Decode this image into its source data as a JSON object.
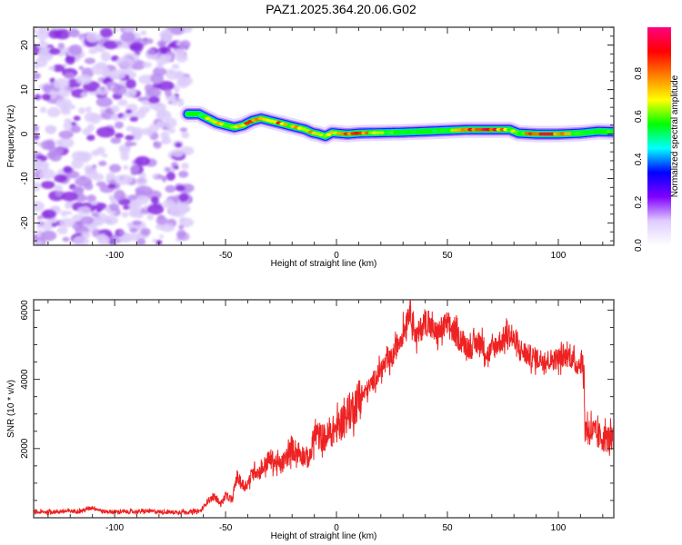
{
  "title": "PAZ1.2025.364.20.06.G02",
  "chart_data": [
    {
      "type": "heatmap",
      "name": "spectrogram",
      "xlabel": "Height of straight line (km)",
      "ylabel": "Frequency (Hz)",
      "xlim": [
        -136.5,
        125
      ],
      "ylim": [
        -25,
        24
      ],
      "xticks": [
        -100,
        -50,
        0,
        50,
        100
      ],
      "yticks": [
        -20,
        -10,
        0,
        10,
        20
      ],
      "colorbar": {
        "label": "Normalized spectral amplitude",
        "range": [
          0.0,
          1.0
        ],
        "ticks": [
          0.0,
          0.2,
          0.4,
          0.6,
          0.8
        ],
        "colors": [
          "#ffffff",
          "#e0ccff",
          "#8000ff",
          "#0000ff",
          "#00ffff",
          "#00ff00",
          "#ffff00",
          "#ff8000",
          "#ff0000",
          "#ff0080"
        ]
      },
      "noise_region_km": [
        -136.5,
        -67
      ],
      "ridge": {
        "height_km": [
          -67,
          -62,
          -58,
          -54,
          -50,
          -46,
          -42,
          -38,
          -34,
          -30,
          -26,
          -22,
          -18,
          -14,
          -11,
          -8,
          -5,
          -2,
          0,
          5,
          10,
          20,
          30,
          40,
          50,
          60,
          70,
          78,
          82,
          90,
          100,
          110,
          118,
          125
        ],
        "frequency_hz": [
          4.5,
          4.5,
          3.5,
          2.5,
          2.0,
          1.5,
          2.0,
          3.0,
          3.5,
          3.0,
          2.5,
          2.0,
          1.5,
          1.0,
          0.3,
          0.0,
          -0.5,
          0.3,
          0.2,
          0.0,
          0.2,
          0.3,
          0.4,
          0.6,
          0.8,
          1.0,
          1.0,
          1.0,
          0.2,
          0.0,
          0.0,
          0.2,
          0.6,
          0.5
        ],
        "peak_amplitude": [
          0.45,
          0.5,
          0.7,
          0.75,
          0.6,
          0.7,
          0.8,
          0.85,
          0.8,
          0.7,
          0.85,
          0.7,
          0.75,
          0.6,
          0.85,
          0.6,
          0.75,
          0.7,
          0.8,
          0.85,
          0.9,
          0.6,
          0.55,
          0.5,
          0.6,
          0.95,
          0.95,
          0.7,
          0.6,
          0.95,
          0.9,
          0.55,
          0.5,
          0.65
        ]
      }
    },
    {
      "type": "line",
      "name": "snr",
      "xlabel": "Height of straight line (km)",
      "ylabel": "SNR (10 * v/v)",
      "xlim": [
        -136.5,
        125
      ],
      "ylim": [
        0,
        6300
      ],
      "xticks": [
        -100,
        -50,
        0,
        50,
        100
      ],
      "yticks": [
        2000,
        4000,
        6000
      ],
      "color": "#ee2222",
      "series": [
        {
          "name": "SNR",
          "x": [
            -136.5,
            -125,
            -115,
            -110,
            -105,
            -95,
            -85,
            -75,
            -65,
            -61,
            -58,
            -55,
            -52,
            -50,
            -47,
            -45,
            -42,
            -40,
            -37,
            -35,
            -30,
            -25,
            -20,
            -15,
            -12,
            -10,
            -5,
            0,
            5,
            10,
            15,
            20,
            25,
            28,
            31,
            33,
            36,
            40,
            45,
            50,
            55,
            60,
            65,
            68,
            72,
            78,
            82,
            86,
            90,
            95,
            100,
            105,
            108,
            111,
            112,
            115,
            118,
            121,
            125
          ],
          "y": [
            150,
            180,
            200,
            300,
            180,
            170,
            190,
            160,
            170,
            200,
            500,
            600,
            400,
            650,
            500,
            1200,
            900,
            1000,
            1400,
            1300,
            1700,
            1500,
            2000,
            1800,
            1700,
            2400,
            2300,
            2600,
            3000,
            3400,
            3800,
            4300,
            4600,
            5100,
            5500,
            6100,
            5200,
            5700,
            5300,
            5600,
            5200,
            4900,
            5100,
            4700,
            5000,
            5300,
            4900,
            4700,
            4600,
            4550,
            4600,
            4700,
            4400,
            4500,
            2600,
            2500,
            2350,
            2300,
            2250
          ]
        }
      ]
    }
  ]
}
